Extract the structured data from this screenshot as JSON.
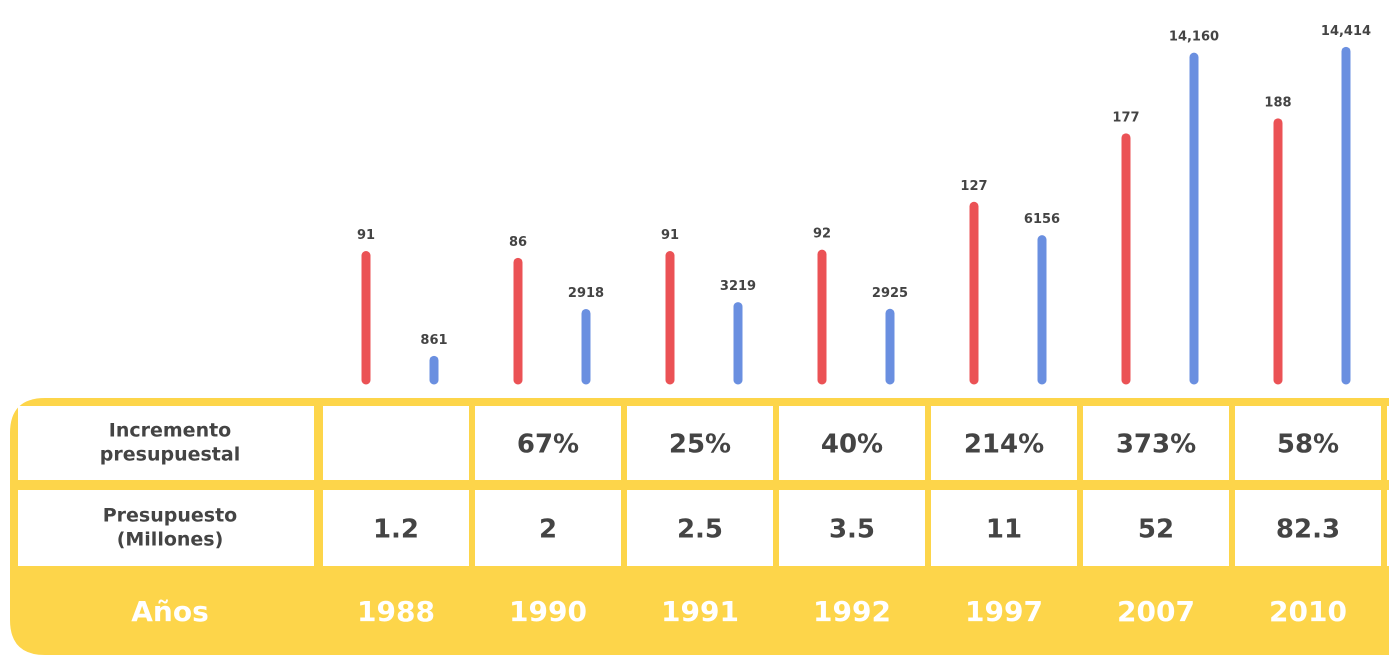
{
  "chart_data": {
    "type": "bar",
    "categories": [
      "1988",
      "1990",
      "1991",
      "1992",
      "1997",
      "2007",
      "2010"
    ],
    "series": [
      {
        "color": "#eb5255",
        "values": [
          91,
          86,
          91,
          92,
          127,
          177,
          188
        ]
      },
      {
        "color": "#6a8fe0",
        "axis": "y2",
        "values": [
          861,
          2918,
          3219,
          2925,
          6156,
          14160,
          14414
        ],
        "value_labels": [
          "861",
          "2918",
          "3219",
          "2925",
          "6156",
          "14,160",
          "14,414"
        ]
      }
    ],
    "ylim": [
      0,
      250
    ],
    "y2lim": [
      0,
      15000
    ],
    "category_label": "Años"
  },
  "table": {
    "rows": [
      {
        "label": [
          "Incremento",
          "presupuestal"
        ],
        "cells": [
          null,
          "67%",
          "25%",
          "40%",
          "214%",
          "373%",
          "58%"
        ]
      },
      {
        "label": [
          "Presupuesto",
          "(Millones)"
        ],
        "cells": [
          1.2,
          2,
          2.5,
          3.5,
          11,
          52,
          82.3
        ]
      }
    ]
  }
}
